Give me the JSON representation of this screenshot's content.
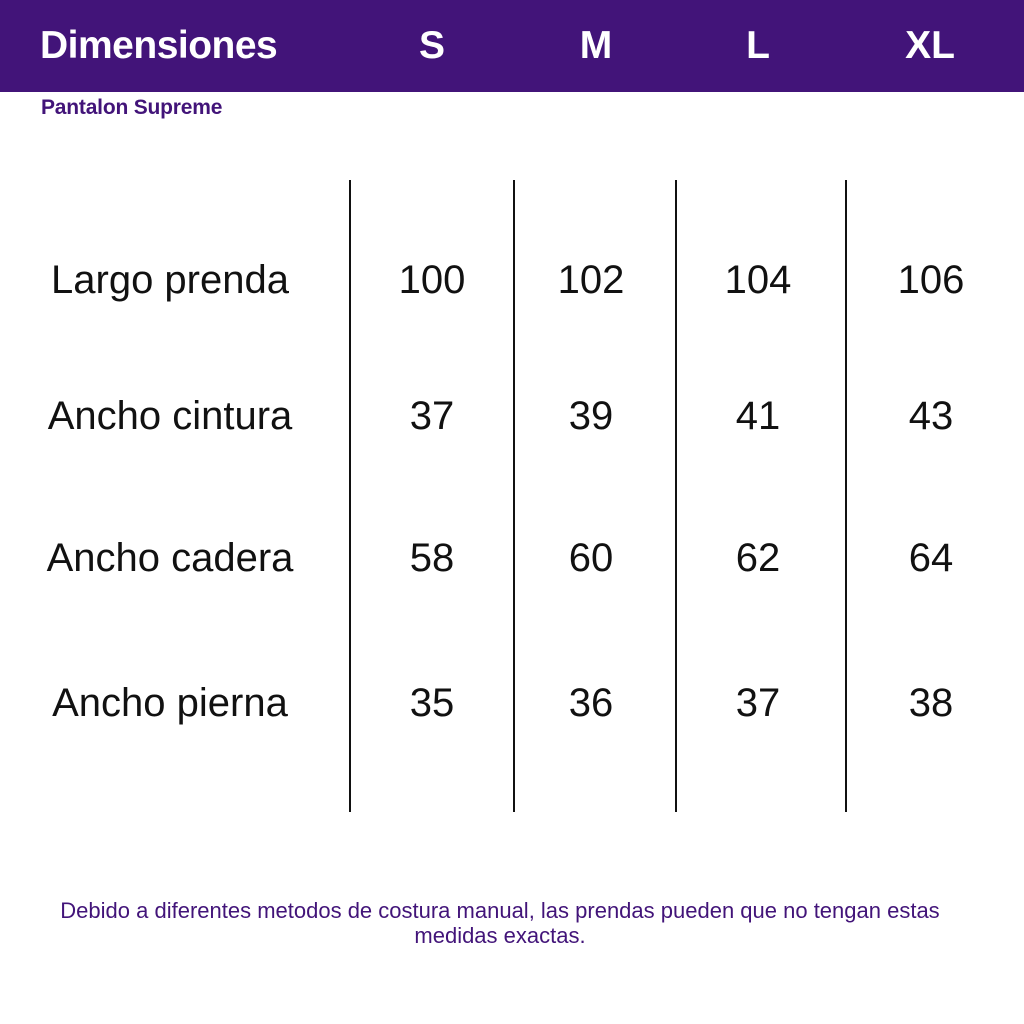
{
  "header": {
    "title": "Dimensiones",
    "sizes": [
      "S",
      "M",
      "L",
      "XL"
    ]
  },
  "subtitle": "Pantalon Supreme",
  "table": {
    "rows": [
      {
        "label": "Largo prenda",
        "values": [
          "100",
          "102",
          "104",
          "106"
        ]
      },
      {
        "label": "Ancho cintura",
        "values": [
          "37",
          "39",
          "41",
          "43"
        ]
      },
      {
        "label": "Ancho cadera",
        "values": [
          "58",
          "60",
          "62",
          "64"
        ]
      },
      {
        "label": "Ancho pierna",
        "values": [
          "35",
          "36",
          "37",
          "38"
        ]
      }
    ]
  },
  "footnote": "Debido a diferentes metodos de costura manual, las prendas pueden que no tengan estas medidas exactas.",
  "colors": {
    "brand": "#421479",
    "text": "#111111",
    "background": "#ffffff"
  }
}
